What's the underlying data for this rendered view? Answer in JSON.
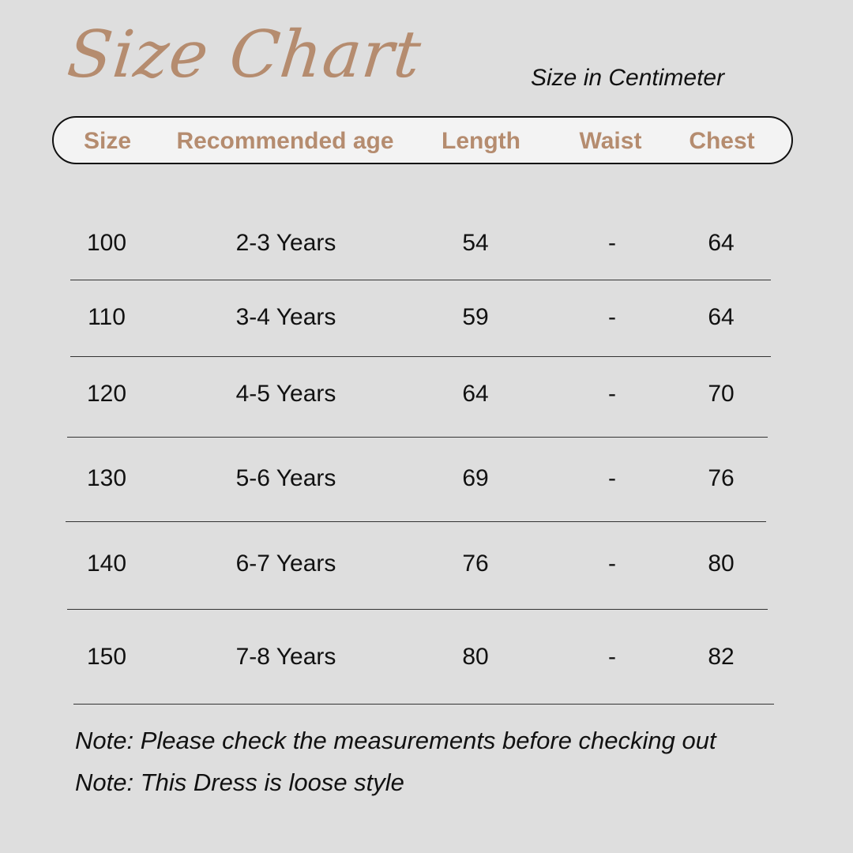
{
  "title": "Size Chart",
  "subtitle": "Size in Centimeter",
  "accent_color": "#b58c6f",
  "columns": [
    "Size",
    "Recommended age",
    "Length",
    "Waist",
    "Chest"
  ],
  "rows": [
    [
      "100",
      "2-3 Years",
      "54",
      "-",
      "64"
    ],
    [
      "110",
      "3-4 Years",
      "59",
      "-",
      "64"
    ],
    [
      "120",
      "4-5 Years",
      "64",
      "-",
      "70"
    ],
    [
      "130",
      "5-6 Years",
      "69",
      "-",
      "76"
    ],
    [
      "140",
      "6-7 Years",
      "76",
      "-",
      "80"
    ],
    [
      "150",
      "7-8 Years",
      "80",
      "-",
      "82"
    ]
  ],
  "notes": [
    "Note: Please check the measurements before checking out",
    "Note: This Dress is loose style"
  ]
}
